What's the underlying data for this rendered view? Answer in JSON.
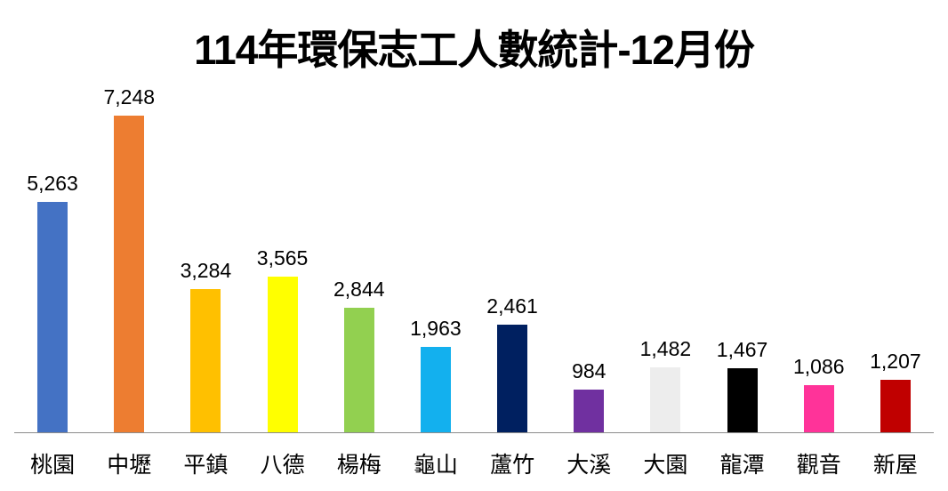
{
  "title": "114年環保志工人數統計-12月份",
  "chart_data": {
    "type": "bar",
    "title": "114年環保志工人數統計-12月份",
    "xlabel": "",
    "ylabel": "",
    "categories": [
      "桃園",
      "中壢",
      "平鎮",
      "八德",
      "楊梅",
      "龜山",
      "蘆竹",
      "大溪",
      "大園",
      "龍潭",
      "觀音",
      "新屋"
    ],
    "values": [
      5263,
      7248,
      3284,
      3565,
      2844,
      1963,
      2461,
      984,
      1482,
      1467,
      1086,
      1207
    ],
    "value_labels": [
      "5,263",
      "7,248",
      "3,284",
      "3,565",
      "2,844",
      "1,963",
      "2,461",
      "984",
      "1,482",
      "1,467",
      "1,086",
      "1,207"
    ],
    "colors": [
      "#4472C4",
      "#ED7D31",
      "#FFC000",
      "#FFFF00",
      "#92D050",
      "#13B0EE",
      "#002060",
      "#7030A0",
      "#EDEDED",
      "#000000",
      "#FF3399",
      "#C00000"
    ],
    "ylim": [
      0,
      7248
    ],
    "grid": false,
    "legend": "none",
    "data_labels": true
  }
}
